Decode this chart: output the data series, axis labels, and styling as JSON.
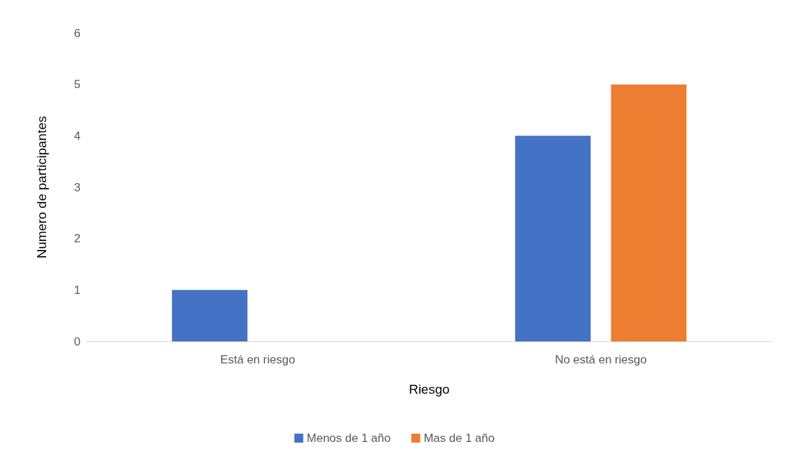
{
  "chart_data": {
    "type": "bar",
    "xlabel": "Riesgo",
    "ylabel": "Numero de participantes",
    "categories": [
      "Está en riesgo",
      "No está en riesgo"
    ],
    "series": [
      {
        "name": "Menos de 1 año",
        "color": "#4472c4",
        "values": [
          1,
          4
        ]
      },
      {
        "name": "Mas de 1 año",
        "color": "#ed7d31",
        "values": [
          0,
          5
        ]
      }
    ],
    "ylim": [
      0,
      6
    ],
    "yticks": [
      0,
      1,
      2,
      3,
      4,
      5,
      6
    ],
    "grid": false,
    "legend": "bottom"
  }
}
